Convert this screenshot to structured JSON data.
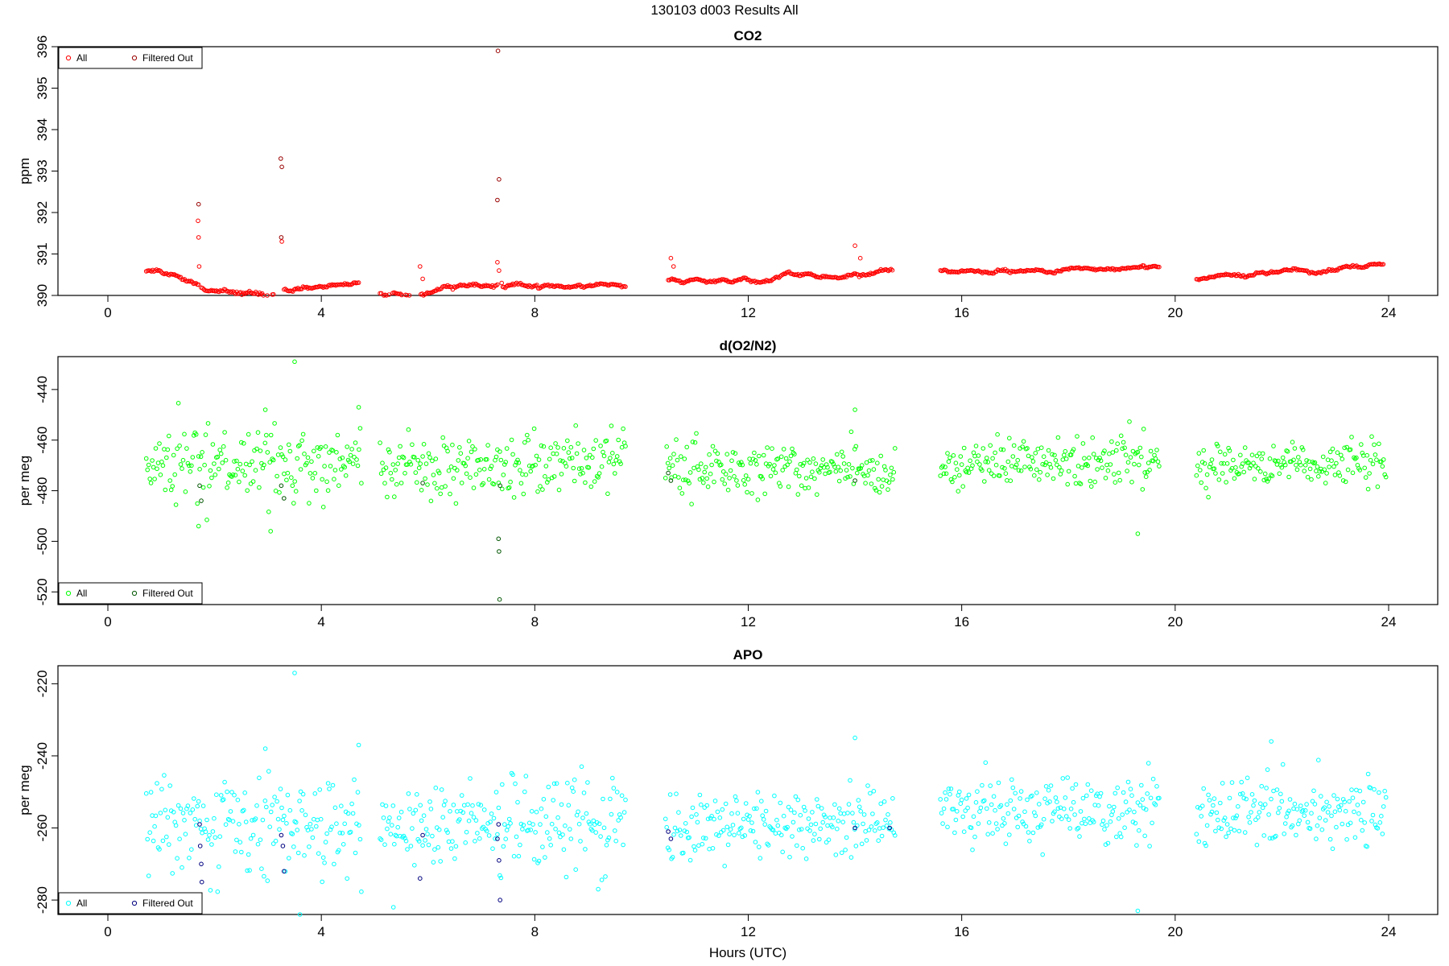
{
  "figure": {
    "title": "130103   d003   Results All"
  },
  "chart_data": [
    {
      "type": "scatter",
      "title": "CO2",
      "xlabel": "",
      "ylabel": "ppm",
      "xlim": [
        0,
        24
      ],
      "ylim": [
        390,
        396
      ],
      "xticks": [
        0,
        4,
        8,
        12,
        16,
        20,
        24
      ],
      "yticks": [
        390,
        391,
        392,
        393,
        394,
        395,
        396
      ],
      "legend_position": "top-left",
      "series": [
        {
          "name": "All",
          "color": "#ff0000",
          "segments": [
            {
              "x_start": 0.72,
              "x_end": 1.7,
              "start": 390.6,
              "end": 390.2,
              "noise": 0.05,
              "density": 42
            },
            {
              "x_start": 1.75,
              "x_end": 3.2,
              "start": 390.2,
              "end": 390.05,
              "noise": 0.08,
              "density": 42
            },
            {
              "x_start": 3.3,
              "x_end": 4.7,
              "start": 390.1,
              "end": 390.3,
              "noise": 0.06,
              "density": 42
            },
            {
              "x_start": 5.1,
              "x_end": 7.3,
              "start": 390.05,
              "end": 390.2,
              "noise": 0.08,
              "density": 42
            },
            {
              "x_start": 7.4,
              "x_end": 9.7,
              "start": 390.2,
              "end": 390.3,
              "noise": 0.06,
              "density": 42
            },
            {
              "x_start": 10.5,
              "x_end": 14.7,
              "start": 390.35,
              "end": 390.6,
              "noise": 0.06,
              "density": 42
            },
            {
              "x_start": 15.6,
              "x_end": 19.7,
              "start": 390.6,
              "end": 390.65,
              "noise": 0.05,
              "density": 42
            },
            {
              "x_start": 20.4,
              "x_end": 23.9,
              "start": 390.4,
              "end": 390.7,
              "noise": 0.05,
              "density": 42
            }
          ],
          "extra_points": [
            [
              1.69,
              391.8
            ],
            [
              1.7,
              391.4
            ],
            [
              1.71,
              390.7
            ],
            [
              3.26,
              391.3
            ],
            [
              5.85,
              390.7
            ],
            [
              5.9,
              390.4
            ],
            [
              7.3,
              390.8
            ],
            [
              7.33,
              390.6
            ],
            [
              7.38,
              390.3
            ],
            [
              10.55,
              390.9
            ],
            [
              10.6,
              390.7
            ],
            [
              14.0,
              391.2
            ],
            [
              14.1,
              390.9
            ]
          ]
        },
        {
          "name": "Filtered Out",
          "color": "#990000",
          "points": [
            [
              1.7,
              392.2
            ],
            [
              3.24,
              393.3
            ],
            [
              3.26,
              393.1
            ],
            [
              3.25,
              391.4
            ],
            [
              7.32,
              396.2
            ],
            [
              7.31,
              395.9
            ],
            [
              7.33,
              392.8
            ],
            [
              7.3,
              392.3
            ]
          ]
        }
      ]
    },
    {
      "type": "scatter",
      "title": "d(O2/N2)",
      "xlabel": "",
      "ylabel": "per meg",
      "xlim": [
        0,
        24
      ],
      "ylim": [
        -525,
        -427
      ],
      "xticks": [
        0,
        4,
        8,
        12,
        16,
        20,
        24
      ],
      "yticks": [
        -520,
        -500,
        -480,
        -460,
        -440
      ],
      "legend_position": "bottom-left",
      "series": [
        {
          "name": "All",
          "color": "#00ff00",
          "segments": [
            {
              "x_start": 0.72,
              "x_end": 4.75,
              "start": -470,
              "end": -470,
              "noise": 7,
              "density": 45
            },
            {
              "x_start": 5.1,
              "x_end": 9.7,
              "start": -472,
              "end": -468,
              "noise": 6,
              "density": 45
            },
            {
              "x_start": 10.45,
              "x_end": 14.75,
              "start": -472,
              "end": -472,
              "noise": 5,
              "density": 45
            },
            {
              "x_start": 15.6,
              "x_end": 19.7,
              "start": -470,
              "end": -468,
              "noise": 5,
              "density": 45
            },
            {
              "x_start": 20.4,
              "x_end": 23.95,
              "start": -470,
              "end": -470,
              "noise": 5,
              "density": 45
            }
          ],
          "extra_points": [
            [
              3.5,
              -429
            ],
            [
              4.7,
              -447
            ],
            [
              2.95,
              -448
            ],
            [
              14.0,
              -448
            ],
            [
              3.05,
              -496
            ],
            [
              19.3,
              -497
            ],
            [
              1.7,
              -494
            ]
          ]
        },
        {
          "name": "Filtered Out",
          "color": "#005500",
          "points": [
            [
              1.72,
              -478
            ],
            [
              1.75,
              -484
            ],
            [
              3.25,
              -478
            ],
            [
              3.3,
              -483
            ],
            [
              5.9,
              -477
            ],
            [
              7.35,
              -478
            ],
            [
              7.32,
              -499
            ],
            [
              7.33,
              -504
            ],
            [
              7.34,
              -523
            ],
            [
              10.5,
              -473
            ],
            [
              10.55,
              -476
            ],
            [
              14.0,
              -476
            ]
          ]
        }
      ]
    },
    {
      "type": "scatter",
      "title": "APO",
      "xlabel": "Hours (UTC)",
      "ylabel": "per meg",
      "xlim": [
        0,
        24
      ],
      "ylim": [
        -284,
        -215
      ],
      "xticks": [
        0,
        4,
        8,
        12,
        16,
        20,
        24
      ],
      "yticks": [
        -280,
        -260,
        -240,
        -220
      ],
      "legend_position": "bottom-left",
      "series": [
        {
          "name": "All",
          "color": "#00ffff",
          "segments": [
            {
              "x_start": 0.72,
              "x_end": 4.75,
              "start": -259,
              "end": -259,
              "noise": 7,
              "density": 45
            },
            {
              "x_start": 5.1,
              "x_end": 9.7,
              "start": -262,
              "end": -258,
              "noise": 6,
              "density": 45
            },
            {
              "x_start": 10.45,
              "x_end": 14.75,
              "start": -260,
              "end": -258,
              "noise": 5,
              "density": 45
            },
            {
              "x_start": 15.6,
              "x_end": 19.7,
              "start": -256,
              "end": -255,
              "noise": 5,
              "density": 45
            },
            {
              "x_start": 20.4,
              "x_end": 23.95,
              "start": -257,
              "end": -255,
              "noise": 5,
              "density": 45
            }
          ],
          "extra_points": [
            [
              3.5,
              -217
            ],
            [
              3.6,
              -284
            ],
            [
              4.7,
              -237
            ],
            [
              2.95,
              -238
            ],
            [
              14.0,
              -235
            ],
            [
              19.3,
              -283
            ],
            [
              5.35,
              -282
            ],
            [
              21.8,
              -236
            ]
          ]
        },
        {
          "name": "Filtered Out",
          "color": "#000080",
          "points": [
            [
              1.72,
              -259
            ],
            [
              1.73,
              -265
            ],
            [
              1.75,
              -270
            ],
            [
              1.76,
              -275
            ],
            [
              3.25,
              -262
            ],
            [
              3.28,
              -265
            ],
            [
              3.3,
              -272
            ],
            [
              5.9,
              -262
            ],
            [
              5.85,
              -274
            ],
            [
              7.32,
              -259
            ],
            [
              7.33,
              -269
            ],
            [
              7.35,
              -280
            ],
            [
              7.3,
              -263
            ],
            [
              10.5,
              -261
            ],
            [
              10.55,
              -263
            ],
            [
              14.0,
              -260
            ],
            [
              14.65,
              -260
            ]
          ]
        }
      ]
    }
  ]
}
